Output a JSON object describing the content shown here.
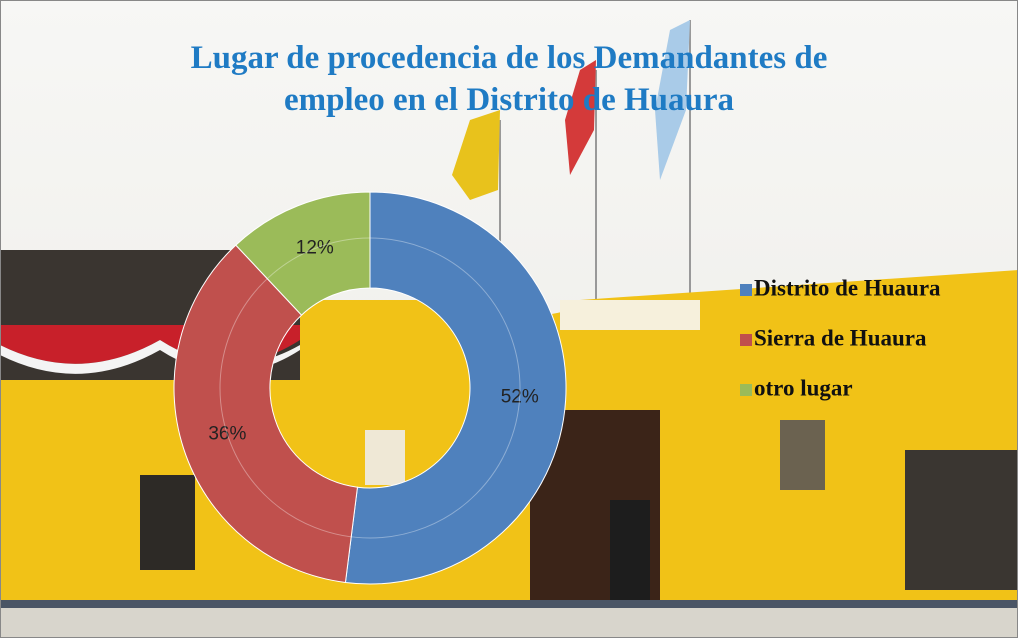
{
  "chart_data": {
    "type": "donut",
    "title": [
      "Lugar de procedencia  de los Demandantes de",
      "empleo en el Distrito de Huaura"
    ],
    "categories": [
      "Distrito de Huaura",
      "Sierra de Huaura",
      "otro lugar"
    ],
    "values": [
      52,
      36,
      12
    ],
    "value_labels": [
      "52%",
      "36%",
      "12%"
    ],
    "colors": [
      "#4f81bd",
      "#c0504d",
      "#9bbb59"
    ],
    "legend": "right"
  }
}
